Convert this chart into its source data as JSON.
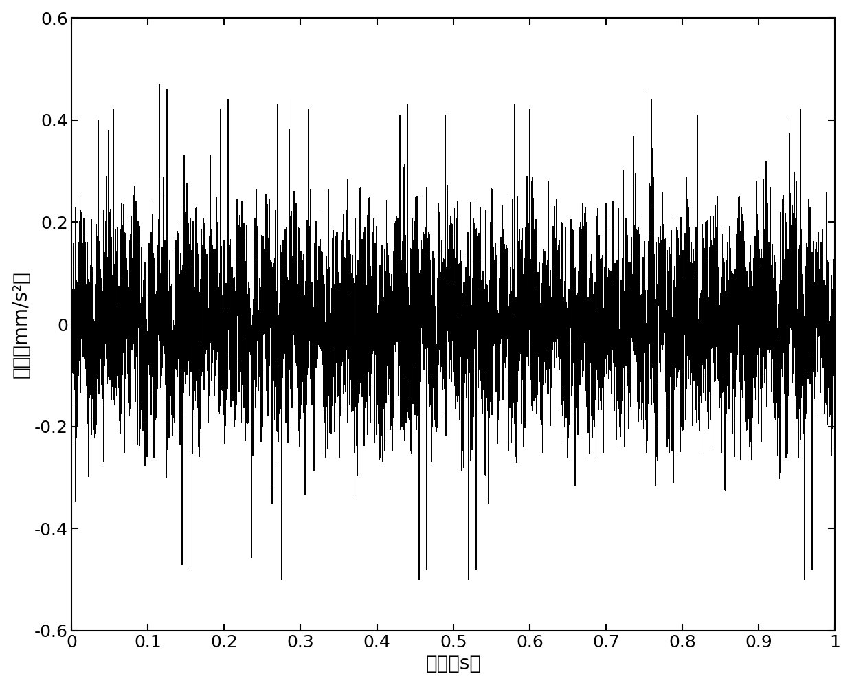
{
  "title": "",
  "xlabel": "时间（s）",
  "ylabel": "幅値（mm/s²）",
  "xlim": [
    0,
    1.0
  ],
  "ylim": [
    -0.6,
    0.6
  ],
  "xticks": [
    0,
    0.1,
    0.2,
    0.3,
    0.4,
    0.5,
    0.6,
    0.7,
    0.8,
    0.9,
    1.0
  ],
  "yticks": [
    -0.6,
    -0.4,
    -0.2,
    0,
    0.2,
    0.4,
    0.6
  ],
  "line_color": "#000000",
  "line_width": 0.4,
  "bg_color": "#ffffff",
  "fs": 10000,
  "duration": 1.0,
  "seed": 12345,
  "xlabel_fontsize": 20,
  "ylabel_fontsize": 20,
  "tick_fontsize": 18,
  "figsize": [
    12.4,
    9.97
  ],
  "dpi": 100
}
